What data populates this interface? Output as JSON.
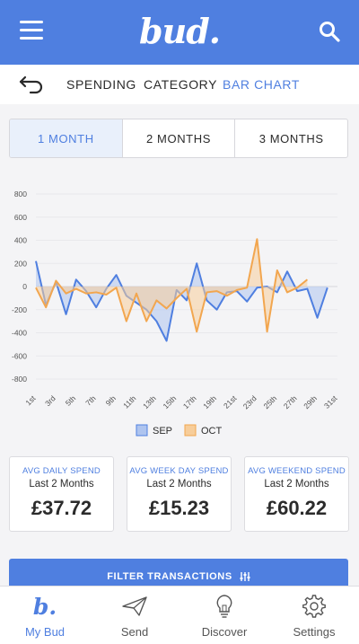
{
  "header": {
    "logo": "bud.",
    "menu_icon": "hamburger-menu-icon",
    "search_icon": "search-icon"
  },
  "subnav": {
    "back_icon": "back-arrow-icon",
    "tabs": [
      {
        "label": "SPENDING",
        "active": false
      },
      {
        "label": "CATEGORY",
        "active": false
      },
      {
        "label": "BAR CHART",
        "active": true
      }
    ]
  },
  "period": {
    "options": [
      {
        "label": "1 MONTH",
        "active": true
      },
      {
        "label": "2 MONTHS",
        "active": false
      },
      {
        "label": "3 MONTHS",
        "active": false
      }
    ]
  },
  "chart_data": {
    "type": "area",
    "x": [
      "1st",
      "2nd",
      "3rd",
      "4th",
      "5th",
      "6th",
      "7th",
      "8th",
      "9th",
      "10th",
      "11th",
      "12th",
      "13th",
      "14th",
      "15th",
      "16th",
      "17th",
      "18th",
      "19th",
      "20th",
      "21st",
      "22nd",
      "23rd",
      "24th",
      "25th",
      "26th",
      "27th",
      "28th",
      "29th",
      "30th",
      "31st"
    ],
    "tick_labels": [
      "1st",
      "3rd",
      "5th",
      "7th",
      "9th",
      "11th",
      "13th",
      "15th",
      "17th",
      "19th",
      "21st",
      "23rd",
      "25th",
      "27th",
      "29th",
      "31st"
    ],
    "yticks": [
      800,
      600,
      400,
      200,
      0,
      -200,
      -400,
      -600,
      -800
    ],
    "ylim": [
      -800,
      800
    ],
    "grid": true,
    "legend_position": "bottom",
    "series": [
      {
        "name": "SEP",
        "color": "#4f7fe0",
        "fill": "#aec4ef",
        "values": [
          220,
          -160,
          40,
          -240,
          60,
          -40,
          -180,
          -20,
          100,
          -80,
          -140,
          -200,
          -300,
          -470,
          -30,
          -120,
          200,
          -120,
          -200,
          -50,
          -40,
          -130,
          -10,
          0,
          -50,
          130,
          -40,
          -20,
          -270,
          -10,
          null
        ]
      },
      {
        "name": "OCT",
        "color": "#f2a64f",
        "fill": "#f7cd9a",
        "values": [
          -10,
          -180,
          50,
          -60,
          -20,
          -60,
          -50,
          -70,
          -10,
          -300,
          -60,
          -300,
          -120,
          -190,
          -100,
          -20,
          -390,
          -50,
          -40,
          -80,
          -30,
          -10,
          410,
          -390,
          140,
          -50,
          -10,
          60,
          null,
          null,
          null
        ]
      }
    ]
  },
  "stats": [
    {
      "title": "AVG DAILY SPEND",
      "subtitle": "Last 2 Months",
      "value": "£37.72"
    },
    {
      "title": "AVG WEEK DAY SPEND",
      "subtitle": "Last 2 Months",
      "value": "£15.23"
    },
    {
      "title": "AVG WEEKEND SPEND",
      "subtitle": "Last 2 Months",
      "value": "£60.22"
    }
  ],
  "filter": {
    "label": "FILTER TRANSACTIONS",
    "icon": "sliders-icon"
  },
  "tabbar": {
    "items": [
      {
        "label": "My Bud",
        "icon": "bud-logo-icon",
        "active": true
      },
      {
        "label": "Send",
        "icon": "paper-plane-icon",
        "active": false
      },
      {
        "label": "Discover",
        "icon": "lightbulb-icon",
        "active": false
      },
      {
        "label": "Settings",
        "icon": "gear-icon",
        "active": false
      }
    ]
  }
}
